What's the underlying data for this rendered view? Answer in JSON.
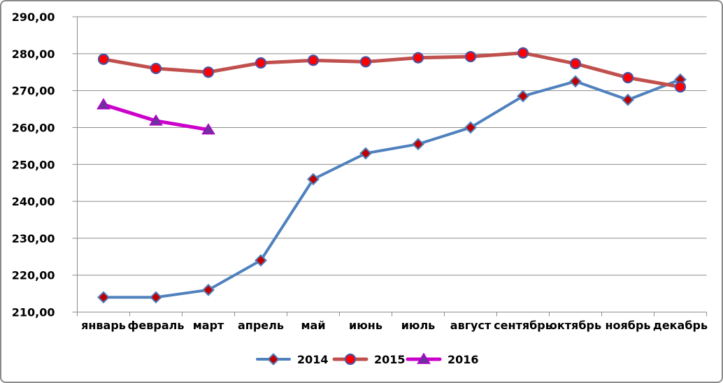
{
  "chart_data": {
    "type": "line",
    "title": "",
    "xlabel": "",
    "ylabel": "",
    "categories": [
      "январь",
      "февраль",
      "март",
      "апрель",
      "май",
      "июнь",
      "июль",
      "август",
      "сентябрь",
      "октябрь",
      "ноябрь",
      "декабрь"
    ],
    "series": [
      {
        "name": "2014",
        "values": [
          214,
          214,
          216,
          224,
          246,
          253,
          255.5,
          260,
          268.5,
          272.5,
          267.5,
          273
        ],
        "line_color": "#4F81BD",
        "line_width": 4,
        "marker": "diamond",
        "marker_fill": "#C00000",
        "marker_stroke": "#4F81BD"
      },
      {
        "name": "2015",
        "values": [
          278.5,
          276,
          275,
          277.5,
          278.2,
          277.8,
          278.9,
          279.2,
          280.2,
          277.3,
          273.5,
          271
        ],
        "line_color": "#C0504D",
        "line_width": 5,
        "marker": "circle",
        "marker_fill": "#FF0000",
        "marker_stroke": "#4A52A3"
      },
      {
        "name": "2016",
        "values": [
          266.2,
          261.8,
          259.4,
          null,
          null,
          null,
          null,
          null,
          null,
          null,
          null,
          null
        ],
        "line_color": "#CC00CC",
        "line_width": 5,
        "marker": "triangle",
        "marker_fill": "#7030A0",
        "marker_stroke": "#B000C8"
      }
    ],
    "ylim": [
      210,
      290
    ],
    "y_tick_step": 10,
    "y_tick_labels": [
      "290,00",
      "280,00",
      "270,00",
      "260,00",
      "250,00",
      "240,00",
      "230,00",
      "220,00",
      "210,00"
    ],
    "grid": true,
    "grid_color": "#8C8C8C",
    "axis_color": "#8C8C8C",
    "text_color": "#000000",
    "background": "#FFFFFF",
    "legend_position": "bottom",
    "legend_labels": [
      "2014",
      "2015",
      "2016"
    ]
  }
}
